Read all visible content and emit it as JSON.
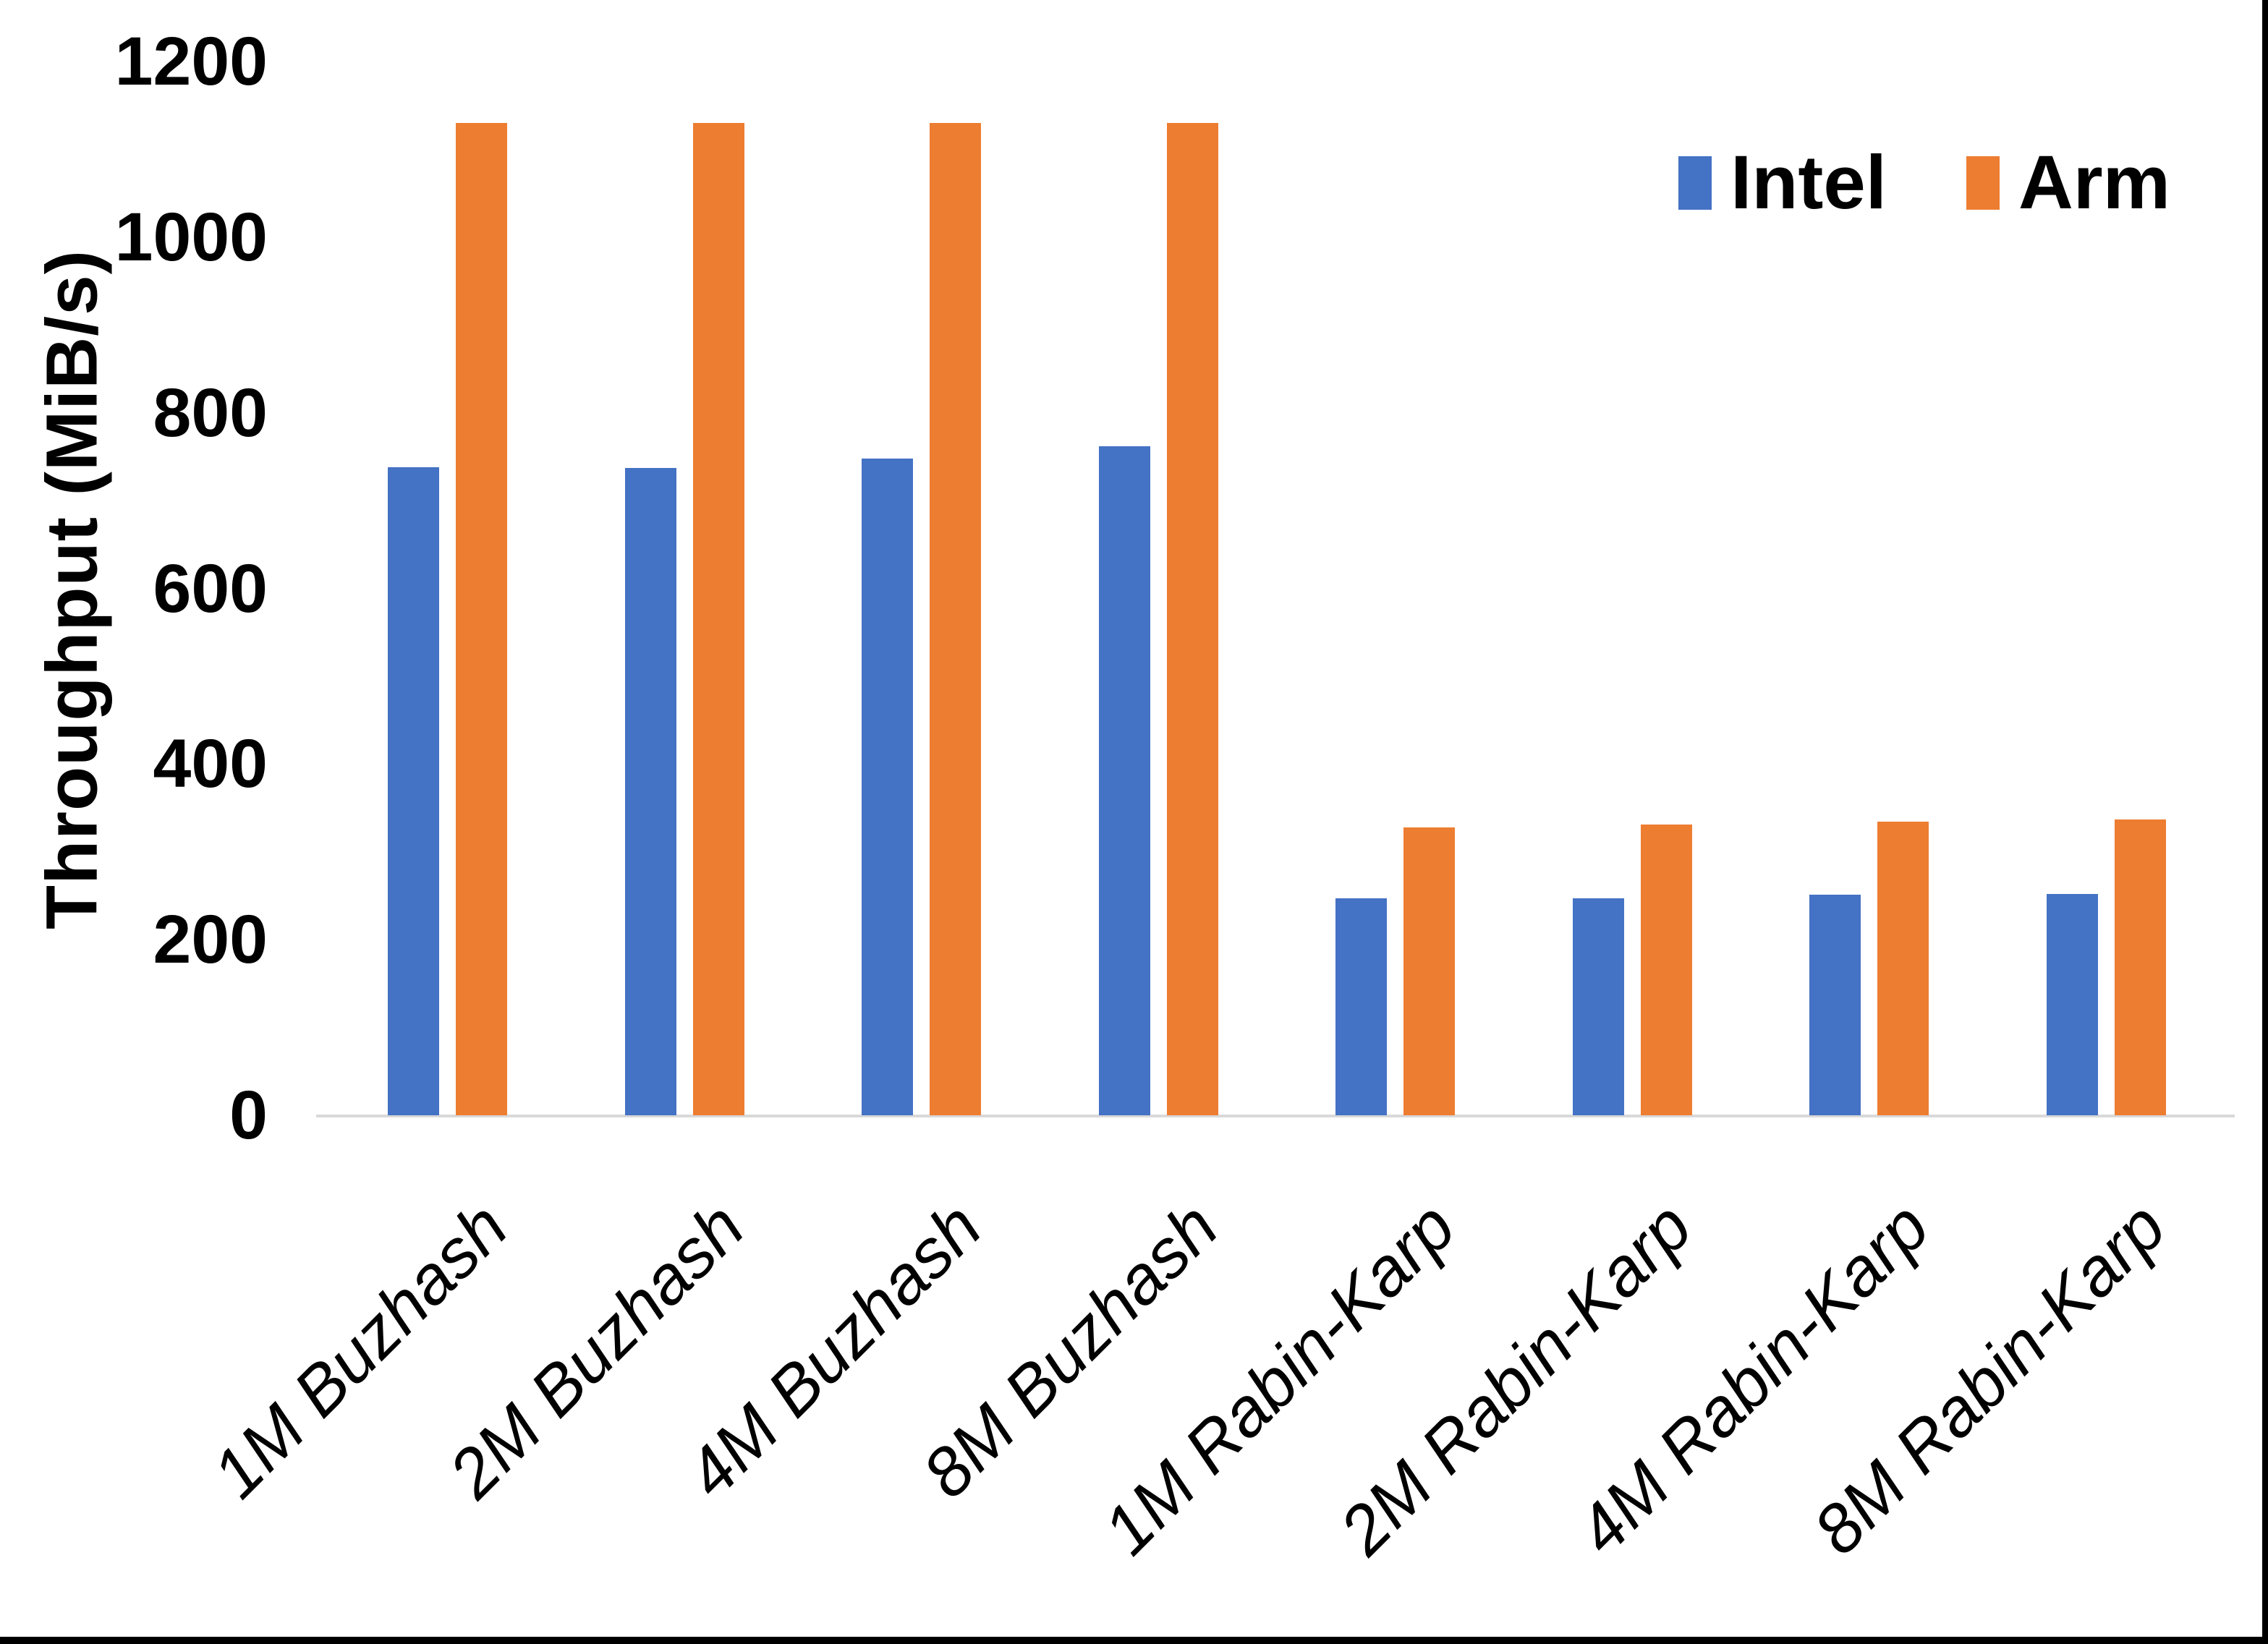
{
  "chart_data": {
    "type": "bar",
    "title": "",
    "categories": [
      "1M Buzhash",
      "2M Buzhash",
      "4M Buzhash",
      "8M Buzhash",
      "1M Rabin-Karp",
      "2M Rabin-Karp",
      "4M Rabin-Karp",
      "8M Rabin-Karp"
    ],
    "series": [
      {
        "name": "Intel",
        "color_key": "intel",
        "values": [
          738,
          737,
          748,
          762,
          247,
          247,
          251,
          252
        ]
      },
      {
        "name": "Arm",
        "color_key": "arm",
        "values": [
          1130,
          1130,
          1130,
          1130,
          328,
          331,
          334,
          337
        ]
      }
    ],
    "xlabel": "",
    "ylabel": "Throughput (MiB/s)",
    "ylim": [
      0,
      1200
    ],
    "ytick_step": 200,
    "ytick_labels": [
      "0",
      "200",
      "400",
      "600",
      "800",
      "1000",
      "1200"
    ],
    "grid": "off",
    "legend_position": "top-right"
  },
  "legend": {
    "items": [
      {
        "label": "Intel",
        "color": "#4472C4"
      },
      {
        "label": "Arm",
        "color": "#ED7D31"
      }
    ]
  },
  "colors": {
    "intel": "#4472C4",
    "arm": "#ED7D31",
    "axis_line": "#D9D9D9",
    "text": "#000000",
    "frame": "#000000",
    "background": "#FFFFFF"
  }
}
